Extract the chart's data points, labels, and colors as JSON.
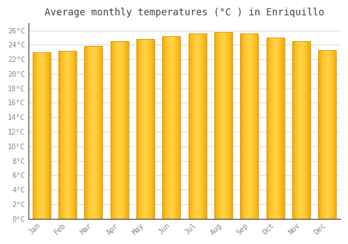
{
  "title": "Average monthly temperatures (°C ) in Enriquillo",
  "months": [
    "Jan",
    "Feb",
    "Mar",
    "Apr",
    "May",
    "Jun",
    "Jul",
    "Aug",
    "Sep",
    "Oct",
    "Nov",
    "Dec"
  ],
  "values": [
    23.0,
    23.2,
    23.8,
    24.5,
    24.8,
    25.2,
    25.6,
    25.8,
    25.6,
    25.0,
    24.5,
    23.3
  ],
  "bar_color_left": "#F5A800",
  "bar_color_center": "#FFD040",
  "bar_color_right": "#F5A800",
  "bar_edge_color": "#CC8800",
  "bar_edge_width": 0.5,
  "background_color": "#FFFFFF",
  "plot_bg_color": "#FFFFFF",
  "grid_color": "#DDDDDD",
  "title_fontsize": 10,
  "tick_fontsize": 7.5,
  "ylim": [
    0,
    27
  ],
  "ytick_step": 2,
  "title_color": "#444444",
  "tick_color": "#888888",
  "font_family": "monospace",
  "bar_width": 0.7
}
